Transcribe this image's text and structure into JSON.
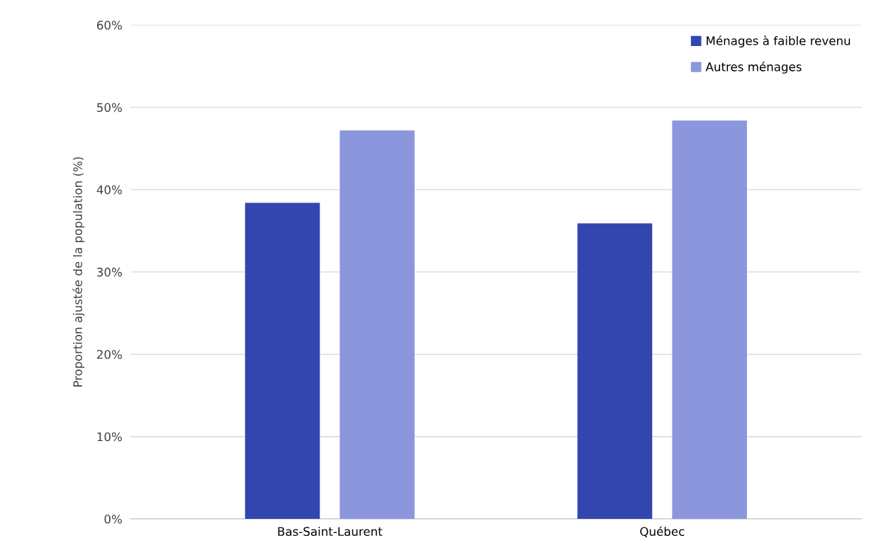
{
  "chart_data": {
    "type": "bar",
    "ylabel": "Proportion ajustée de la population (%)",
    "categories": [
      "Bas-Saint-Laurent",
      "Québec"
    ],
    "series": [
      {
        "name": "Ménages à faible revenu",
        "color": "#3346b0",
        "values": [
          38.4,
          35.9
        ]
      },
      {
        "name": "Autres ménages",
        "color": "#8c96dc",
        "values": [
          47.2,
          48.4
        ]
      }
    ],
    "ylim": [
      0,
      60
    ],
    "yticks": [
      {
        "value": 0,
        "label": "0%"
      },
      {
        "value": 10,
        "label": "10%"
      },
      {
        "value": 20,
        "label": "20%"
      },
      {
        "value": 30,
        "label": "30%"
      },
      {
        "value": 40,
        "label": "40%"
      },
      {
        "value": 50,
        "label": "50%"
      },
      {
        "value": 60,
        "label": "60%"
      }
    ],
    "grid": "y",
    "legend": "top right"
  }
}
